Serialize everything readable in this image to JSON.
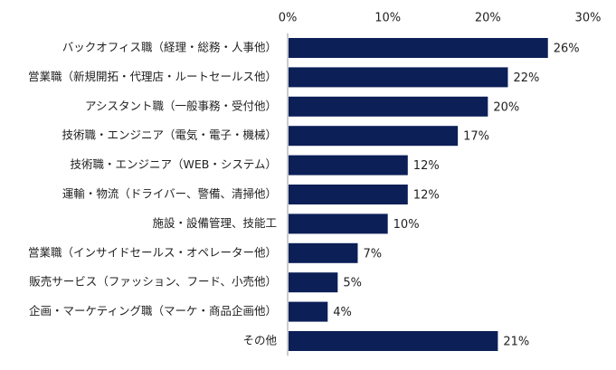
{
  "chart_data": {
    "type": "bar",
    "orientation": "horizontal",
    "categories": [
      "バックオフィス職（経理・総務・人事他）",
      "営業職（新規開拓・代理店・ルートセールス他）",
      "アシスタント職（一般事務・受付他）",
      "技術職・エンジニア（電気・電子・機械）",
      "技術職・エンジニア（WEB・システム）",
      "運輸・物流（ドライバー、警備、清掃他）",
      "施設・設備管理、技能工",
      "営業職（インサイドセールス・オペレーター他）",
      "販売サービス（ファッション、フード、小売他）",
      "企画・マーケティング職（マーケ・商品企画他）",
      "その他"
    ],
    "values": [
      26,
      22,
      20,
      17,
      12,
      12,
      10,
      7,
      5,
      4,
      21
    ],
    "value_labels": [
      "26%",
      "22%",
      "20%",
      "17%",
      "12%",
      "12%",
      "10%",
      "7%",
      "5%",
      "4%",
      "21%"
    ],
    "xlim": [
      0,
      30
    ],
    "x_ticks": [
      0,
      10,
      20,
      30
    ],
    "x_tick_labels": [
      "0%",
      "10%",
      "20%",
      "30%"
    ],
    "x_axis_position": "top",
    "grid": false,
    "bar_color": "#0c1f57",
    "axis_color": "#999999"
  }
}
